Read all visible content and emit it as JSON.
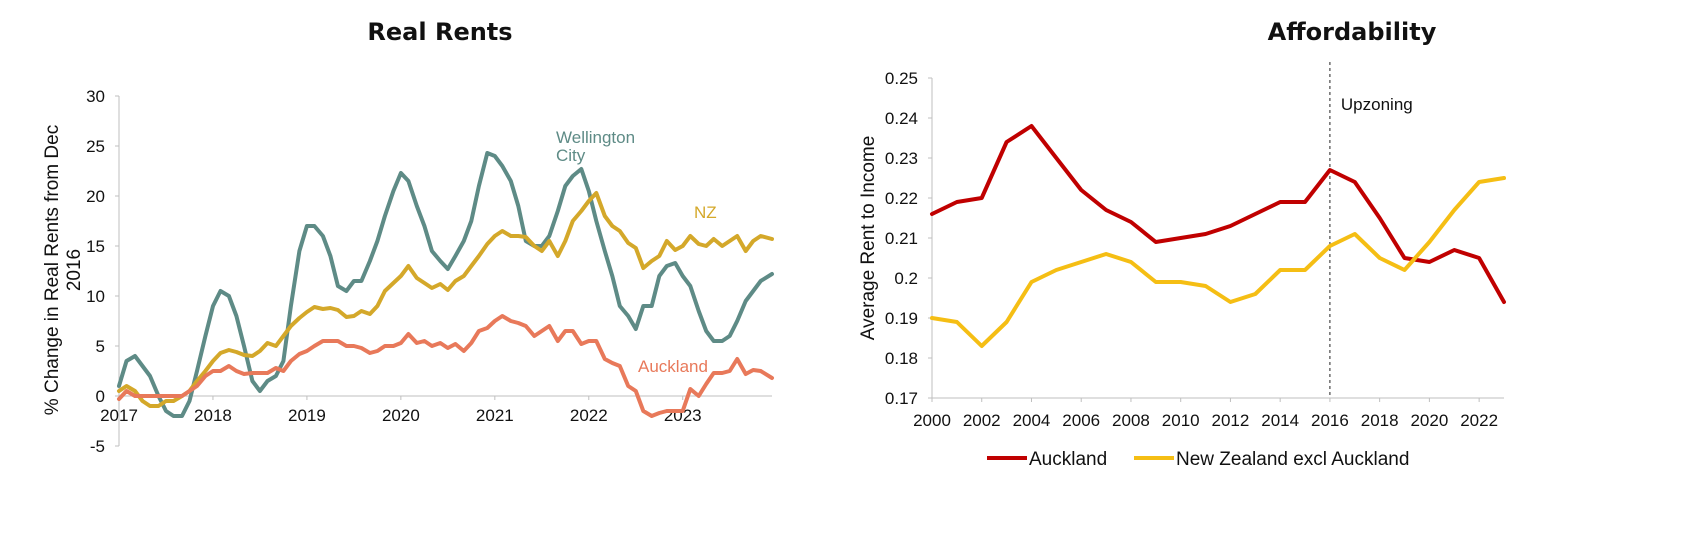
{
  "chart_data": [
    {
      "type": "line",
      "title": "Real Rents",
      "ylabel": "% Change in Real Rents from Dec 2016",
      "ylim": [
        -5,
        30
      ],
      "yticks": [
        -5,
        0,
        5,
        10,
        15,
        20,
        25,
        30
      ],
      "xlim": [
        2017.0,
        2023.95
      ],
      "xticks": [
        "2017",
        "2018",
        "2019",
        "2020",
        "2021",
        "2022",
        "2023"
      ],
      "grid": false,
      "legend": "inline labels",
      "series": [
        {
          "name": "Wellington City",
          "color": "#5E8B86",
          "x": [
            2017.0,
            2017.08,
            2017.17,
            2017.25,
            2017.33,
            2017.42,
            2017.5,
            2017.58,
            2017.67,
            2017.75,
            2017.83,
            2017.92,
            2018.0,
            2018.08,
            2018.17,
            2018.25,
            2018.33,
            2018.42,
            2018.5,
            2018.58,
            2018.67,
            2018.75,
            2018.83,
            2018.92,
            2019.0,
            2019.08,
            2019.17,
            2019.25,
            2019.33,
            2019.42,
            2019.5,
            2019.58,
            2019.67,
            2019.75,
            2019.83,
            2019.92,
            2020.0,
            2020.08,
            2020.17,
            2020.25,
            2020.33,
            2020.42,
            2020.5,
            2020.58,
            2020.67,
            2020.75,
            2020.83,
            2020.92,
            2021.0,
            2021.08,
            2021.17,
            2021.25,
            2021.33,
            2021.42,
            2021.5,
            2021.58,
            2021.67,
            2021.75,
            2021.83,
            2021.92,
            2022.0,
            2022.08,
            2022.17,
            2022.25,
            2022.33,
            2022.42,
            2022.5,
            2022.58,
            2022.67,
            2022.75,
            2022.83,
            2022.92,
            2023.0,
            2023.08,
            2023.17,
            2023.25,
            2023.33,
            2023.42,
            2023.5,
            2023.58,
            2023.67,
            2023.75,
            2023.83,
            2023.95
          ],
          "y": [
            1.0,
            3.5,
            4.0,
            3.0,
            2.0,
            0.0,
            -1.5,
            -2.0,
            -2.0,
            -0.5,
            2.5,
            6.0,
            9.0,
            10.5,
            10.0,
            8.0,
            5.0,
            1.5,
            0.5,
            1.5,
            2.0,
            3.5,
            9.0,
            14.5,
            17.0,
            17.0,
            16.0,
            14.0,
            11.0,
            10.5,
            11.5,
            11.5,
            13.5,
            15.5,
            18.0,
            20.5,
            22.3,
            21.5,
            19.0,
            17.0,
            14.5,
            13.5,
            12.7,
            14.0,
            15.5,
            17.5,
            21.0,
            24.3,
            24.0,
            23.0,
            21.5,
            19.0,
            15.5,
            15.0,
            15.0,
            16.0,
            18.5,
            21.0,
            22.0,
            22.7,
            20.5,
            17.5,
            14.5,
            12.0,
            9.0,
            8.0,
            6.7,
            9.0,
            9.0,
            12.0,
            13.0,
            13.3,
            12.0,
            11.0,
            8.5,
            6.5,
            5.5,
            5.5,
            6.0,
            7.5,
            9.5,
            10.5,
            11.5,
            12.2
          ]
        },
        {
          "name": "NZ",
          "color": "#D4A82A",
          "x": [
            2017.0,
            2017.08,
            2017.17,
            2017.25,
            2017.33,
            2017.42,
            2017.5,
            2017.58,
            2017.67,
            2017.75,
            2017.83,
            2017.92,
            2018.0,
            2018.08,
            2018.17,
            2018.25,
            2018.33,
            2018.42,
            2018.5,
            2018.58,
            2018.67,
            2018.75,
            2018.83,
            2018.92,
            2019.0,
            2019.08,
            2019.17,
            2019.25,
            2019.33,
            2019.42,
            2019.5,
            2019.58,
            2019.67,
            2019.75,
            2019.83,
            2019.92,
            2020.0,
            2020.08,
            2020.17,
            2020.25,
            2020.33,
            2020.42,
            2020.5,
            2020.58,
            2020.67,
            2020.75,
            2020.83,
            2020.92,
            2021.0,
            2021.08,
            2021.17,
            2021.25,
            2021.33,
            2021.42,
            2021.5,
            2021.58,
            2021.67,
            2021.75,
            2021.83,
            2021.92,
            2022.0,
            2022.08,
            2022.17,
            2022.25,
            2022.33,
            2022.42,
            2022.5,
            2022.58,
            2022.67,
            2022.75,
            2022.83,
            2022.92,
            2023.0,
            2023.08,
            2023.17,
            2023.25,
            2023.33,
            2023.42,
            2023.5,
            2023.58,
            2023.67,
            2023.75,
            2023.83,
            2023.95
          ],
          "y": [
            0.5,
            1.0,
            0.5,
            -0.5,
            -1.0,
            -1.0,
            -0.5,
            -0.5,
            0.0,
            0.5,
            1.5,
            2.5,
            3.5,
            4.3,
            4.6,
            4.4,
            4.1,
            4.0,
            4.5,
            5.3,
            5.0,
            6.0,
            7.0,
            7.8,
            8.4,
            8.9,
            8.7,
            8.8,
            8.6,
            7.9,
            8.0,
            8.5,
            8.2,
            9.0,
            10.5,
            11.3,
            12.0,
            13.0,
            11.8,
            11.3,
            10.8,
            11.2,
            10.6,
            11.5,
            12.0,
            13.0,
            14.0,
            15.2,
            16.0,
            16.5,
            16.0,
            16.0,
            15.9,
            15.0,
            14.5,
            15.5,
            14.0,
            15.5,
            17.5,
            18.5,
            19.5,
            20.3,
            18.0,
            17.0,
            16.5,
            15.3,
            14.8,
            12.8,
            13.5,
            14.0,
            15.5,
            14.6,
            15.0,
            16.0,
            15.2,
            15.0,
            15.7,
            15.0,
            15.5,
            16.0,
            14.5,
            15.5,
            16.0,
            15.7
          ]
        },
        {
          "name": "Auckland",
          "color": "#E8795A",
          "x": [
            2017.0,
            2017.08,
            2017.17,
            2017.25,
            2017.33,
            2017.42,
            2017.5,
            2017.58,
            2017.67,
            2017.75,
            2017.83,
            2017.92,
            2018.0,
            2018.08,
            2018.17,
            2018.25,
            2018.33,
            2018.42,
            2018.5,
            2018.58,
            2018.67,
            2018.75,
            2018.83,
            2018.92,
            2019.0,
            2019.08,
            2019.17,
            2019.25,
            2019.33,
            2019.42,
            2019.5,
            2019.58,
            2019.67,
            2019.75,
            2019.83,
            2019.92,
            2020.0,
            2020.08,
            2020.17,
            2020.25,
            2020.33,
            2020.42,
            2020.5,
            2020.58,
            2020.67,
            2020.75,
            2020.83,
            2020.92,
            2021.0,
            2021.08,
            2021.17,
            2021.25,
            2021.33,
            2021.42,
            2021.5,
            2021.58,
            2021.67,
            2021.75,
            2021.83,
            2021.92,
            2022.0,
            2022.08,
            2022.17,
            2022.25,
            2022.33,
            2022.42,
            2022.5,
            2022.58,
            2022.67,
            2022.75,
            2022.83,
            2022.92,
            2023.0,
            2023.08,
            2023.17,
            2023.25,
            2023.33,
            2023.42,
            2023.5,
            2023.58,
            2023.67,
            2023.75,
            2023.83,
            2023.95
          ],
          "y": [
            -0.3,
            0.5,
            0.0,
            0.0,
            0.0,
            0.0,
            0.0,
            0.0,
            0.0,
            0.5,
            1.0,
            2.0,
            2.5,
            2.5,
            3.0,
            2.5,
            2.2,
            2.3,
            2.3,
            2.3,
            2.8,
            2.5,
            3.5,
            4.2,
            4.5,
            5.0,
            5.5,
            5.5,
            5.5,
            5.0,
            5.0,
            4.8,
            4.3,
            4.5,
            5.0,
            5.0,
            5.3,
            6.2,
            5.3,
            5.5,
            5.0,
            5.3,
            4.8,
            5.2,
            4.5,
            5.3,
            6.5,
            6.8,
            7.5,
            8.0,
            7.5,
            7.3,
            7.0,
            6.0,
            6.5,
            7.0,
            5.5,
            6.5,
            6.5,
            5.2,
            5.5,
            5.5,
            3.7,
            3.3,
            3.0,
            1.0,
            0.5,
            -1.5,
            -2.0,
            -1.7,
            -1.5,
            -1.5,
            -1.5,
            0.7,
            0.0,
            1.2,
            2.3,
            2.3,
            2.5,
            3.7,
            2.2,
            2.6,
            2.5,
            1.8
          ]
        }
      ],
      "annotations": [
        {
          "text": "Wellington",
          "series": "Wellington City"
        },
        {
          "text": "City",
          "series": "Wellington City"
        },
        {
          "text": "NZ",
          "series": "NZ"
        },
        {
          "text": "Auckland",
          "series": "Auckland"
        }
      ]
    },
    {
      "type": "line",
      "title": "Affordability",
      "ylabel": "Average Rent to Income",
      "ylim": [
        0.17,
        0.25
      ],
      "yticks": [
        0.17,
        0.18,
        0.19,
        0.2,
        0.21,
        0.22,
        0.23,
        0.24,
        0.25
      ],
      "ytick_labels": [
        "0.17",
        "0.18",
        "0.19",
        "0.2",
        "0.21",
        "0.22",
        "0.23",
        "0.24",
        "0.25"
      ],
      "xlim": [
        2000,
        2023
      ],
      "xticks": [
        2000,
        2002,
        2004,
        2006,
        2008,
        2010,
        2012,
        2014,
        2016,
        2018,
        2020,
        2022
      ],
      "grid": false,
      "legend": "bottom",
      "vline": {
        "x": 2016,
        "label": "Upzoning"
      },
      "series": [
        {
          "name": "Auckland",
          "color": "#C00000",
          "x": [
            2000,
            2001,
            2002,
            2003,
            2004,
            2005,
            2006,
            2007,
            2008,
            2009,
            2010,
            2011,
            2012,
            2013,
            2014,
            2015,
            2016,
            2017,
            2018,
            2019,
            2020,
            2021,
            2022,
            2023
          ],
          "y": [
            0.216,
            0.219,
            0.22,
            0.234,
            0.238,
            0.23,
            0.222,
            0.217,
            0.214,
            0.209,
            0.21,
            0.211,
            0.213,
            0.216,
            0.219,
            0.219,
            0.227,
            0.224,
            0.215,
            0.205,
            0.204,
            0.207,
            0.205,
            0.194
          ]
        },
        {
          "name": "New Zealand excl Auckland",
          "color": "#F5BE14",
          "x": [
            2000,
            2001,
            2002,
            2003,
            2004,
            2005,
            2006,
            2007,
            2008,
            2009,
            2010,
            2011,
            2012,
            2013,
            2014,
            2015,
            2016,
            2017,
            2018,
            2019,
            2020,
            2021,
            2022,
            2023
          ],
          "y": [
            0.19,
            0.189,
            0.183,
            0.189,
            0.199,
            0.202,
            0.204,
            0.206,
            0.204,
            0.199,
            0.199,
            0.198,
            0.194,
            0.196,
            0.202,
            0.202,
            0.208,
            0.211,
            0.205,
            0.202,
            0.209,
            0.217,
            0.224,
            0.225
          ]
        }
      ]
    }
  ]
}
